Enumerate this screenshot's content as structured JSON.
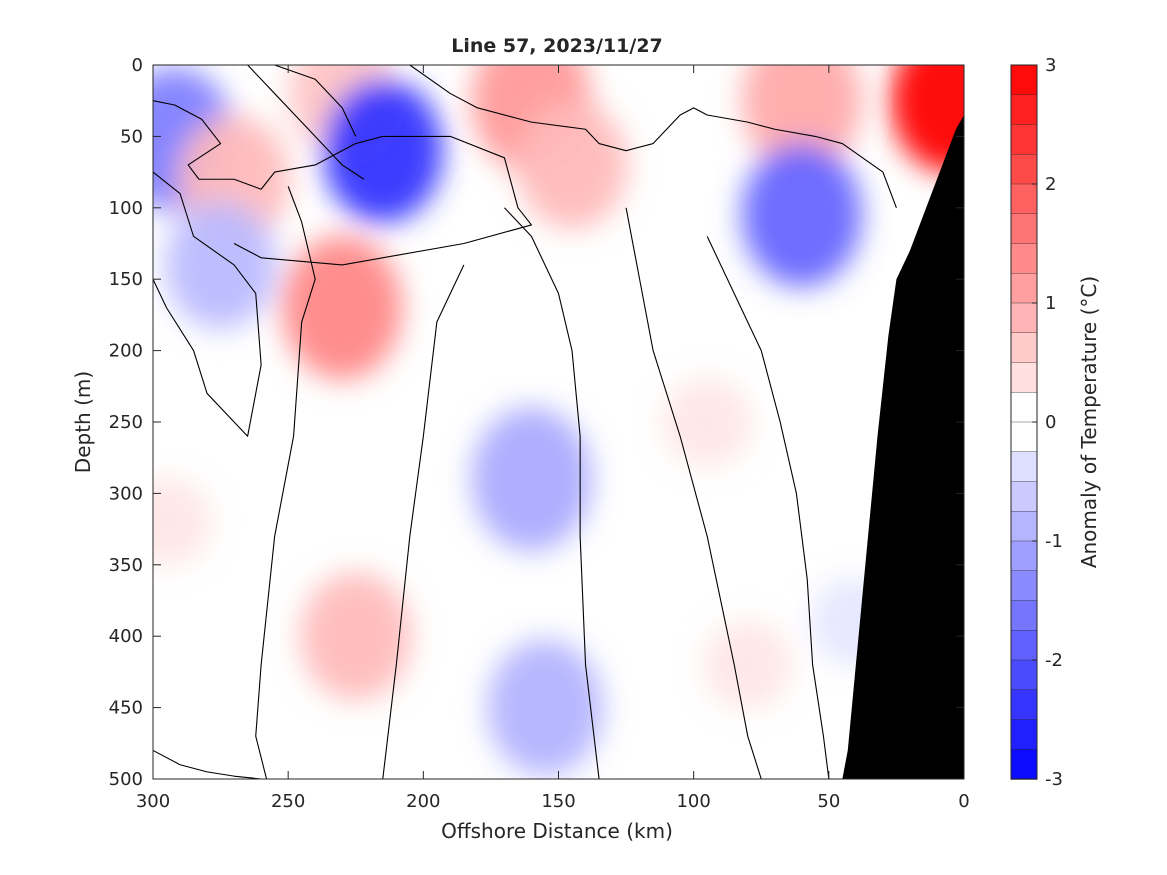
{
  "chart_data": {
    "type": "heatmap",
    "subtype": "filled-contour section",
    "title": "Line 57, 2023/11/27",
    "xlabel": "Offshore Distance (km)",
    "ylabel": "Depth (m)",
    "xlim": [
      300,
      0
    ],
    "x_reversed": true,
    "ylim": [
      0,
      500
    ],
    "y_reversed": true,
    "xticks": [
      "300",
      "250",
      "200",
      "150",
      "100",
      "50",
      "0"
    ],
    "yticks": [
      "0",
      "50",
      "100",
      "150",
      "200",
      "250",
      "300",
      "350",
      "400",
      "450",
      "500"
    ],
    "colorbar": {
      "label": "Anomaly of Temperature (°C)",
      "range": [
        -3,
        3
      ],
      "ticks": [
        "3",
        "2",
        "1",
        "0",
        "-1",
        "-2",
        "-3"
      ],
      "levels": 24,
      "colormap": "blue-white-red",
      "colors": {
        "min": "#0000ff",
        "mid": "#ffffff",
        "max": "#ff0000"
      }
    },
    "zero_contour": "black line",
    "bathymetry_color": "#000000",
    "features": [
      {
        "x": 5,
        "depth": 25,
        "anomaly": 3.0
      },
      {
        "x": 60,
        "depth": 25,
        "anomaly": 1.0
      },
      {
        "x": 160,
        "depth": 25,
        "anomaly": 1.2
      },
      {
        "x": 230,
        "depth": 20,
        "anomaly": 0.7
      },
      {
        "x": 215,
        "depth": 60,
        "anomaly": -2.4
      },
      {
        "x": 292,
        "depth": 52,
        "anomaly": -1.5
      },
      {
        "x": 270,
        "depth": 80,
        "anomaly": 0.8
      },
      {
        "x": 145,
        "depth": 70,
        "anomaly": 0.8
      },
      {
        "x": 60,
        "depth": 105,
        "anomaly": -1.8
      },
      {
        "x": 275,
        "depth": 140,
        "anomaly": -0.8
      },
      {
        "x": 230,
        "depth": 170,
        "anomaly": 1.4
      },
      {
        "x": 225,
        "depth": 400,
        "anomaly": 0.8
      },
      {
        "x": 160,
        "depth": 290,
        "anomaly": -1.0
      },
      {
        "x": 155,
        "depth": 450,
        "anomaly": -0.9
      },
      {
        "x": 95,
        "depth": 250,
        "anomaly": 0.3
      },
      {
        "x": 80,
        "depth": 420,
        "anomaly": 0.3
      },
      {
        "x": 295,
        "depth": 320,
        "anomaly": 0.3
      },
      {
        "x": 40,
        "depth": 390,
        "anomaly": -0.3
      }
    ],
    "zero_contours": [
      [
        [
          300,
          25
        ],
        [
          292,
          28
        ],
        [
          282,
          38
        ],
        [
          275,
          55
        ],
        [
          287,
          70
        ],
        [
          283,
          80
        ],
        [
          270,
          80
        ],
        [
          260,
          87
        ],
        [
          255,
          75
        ],
        [
          240,
          70
        ],
        [
          232,
          62
        ],
        [
          225,
          55
        ],
        [
          215,
          50
        ],
        [
          200,
          50
        ],
        [
          190,
          50
        ],
        [
          170,
          65
        ],
        [
          165,
          100
        ],
        [
          160,
          112
        ],
        [
          185,
          125
        ],
        [
          230,
          140
        ],
        [
          260,
          135
        ],
        [
          270,
          125
        ]
      ],
      [
        [
          222,
          80
        ],
        [
          230,
          70
        ],
        [
          245,
          40
        ],
        [
          255,
          20
        ],
        [
          265,
          0
        ]
      ],
      [
        [
          205,
          0
        ],
        [
          190,
          20
        ],
        [
          180,
          30
        ],
        [
          160,
          40
        ],
        [
          140,
          45
        ],
        [
          135,
          55
        ],
        [
          125,
          60
        ],
        [
          115,
          55
        ],
        [
          105,
          35
        ],
        [
          100,
          30
        ],
        [
          95,
          35
        ],
        [
          80,
          40
        ],
        [
          70,
          45
        ],
        [
          55,
          50
        ],
        [
          45,
          55
        ],
        [
          30,
          75
        ],
        [
          25,
          100
        ]
      ],
      [
        [
          255,
          0
        ],
        [
          240,
          10
        ],
        [
          230,
          30
        ],
        [
          225,
          50
        ]
      ],
      [
        [
          300,
          75
        ],
        [
          290,
          90
        ],
        [
          285,
          120
        ],
        [
          270,
          140
        ],
        [
          262,
          160
        ],
        [
          260,
          210
        ],
        [
          265,
          260
        ],
        [
          270,
          250
        ],
        [
          280,
          230
        ],
        [
          285,
          200
        ],
        [
          295,
          170
        ],
        [
          300,
          150
        ]
      ],
      [
        [
          250,
          85
        ],
        [
          245,
          110
        ],
        [
          240,
          150
        ],
        [
          245,
          180
        ],
        [
          248,
          260
        ],
        [
          255,
          330
        ],
        [
          260,
          420
        ],
        [
          262,
          470
        ],
        [
          258,
          500
        ]
      ],
      [
        [
          170,
          100
        ],
        [
          160,
          120
        ],
        [
          150,
          160
        ],
        [
          145,
          200
        ],
        [
          142,
          260
        ],
        [
          142,
          330
        ],
        [
          140,
          420
        ],
        [
          135,
          500
        ]
      ],
      [
        [
          185,
          140
        ],
        [
          195,
          180
        ],
        [
          200,
          260
        ],
        [
          205,
          330
        ],
        [
          210,
          420
        ],
        [
          215,
          500
        ]
      ],
      [
        [
          125,
          100
        ],
        [
          120,
          150
        ],
        [
          115,
          200
        ],
        [
          105,
          260
        ],
        [
          95,
          330
        ],
        [
          85,
          420
        ],
        [
          80,
          470
        ],
        [
          75,
          500
        ]
      ],
      [
        [
          95,
          120
        ],
        [
          85,
          160
        ],
        [
          75,
          200
        ],
        [
          68,
          250
        ],
        [
          62,
          300
        ],
        [
          58,
          360
        ],
        [
          56,
          420
        ],
        [
          52,
          470
        ],
        [
          50,
          500
        ]
      ],
      [
        [
          300,
          480
        ],
        [
          290,
          490
        ],
        [
          280,
          495
        ],
        [
          270,
          498
        ],
        [
          260,
          500
        ]
      ]
    ],
    "bathymetry": [
      [
        0,
        35
      ],
      [
        3,
        45
      ],
      [
        8,
        70
      ],
      [
        14,
        100
      ],
      [
        20,
        130
      ],
      [
        25,
        150
      ],
      [
        28,
        190
      ],
      [
        32,
        260
      ],
      [
        36,
        340
      ],
      [
        40,
        420
      ],
      [
        43,
        480
      ],
      [
        45,
        500
      ]
    ]
  }
}
